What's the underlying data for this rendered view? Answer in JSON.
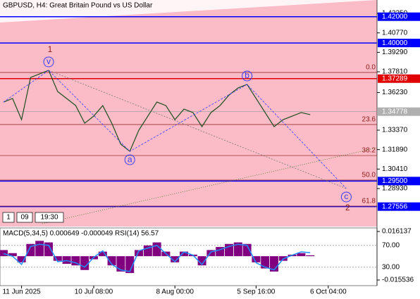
{
  "chart_data": {
    "type": "line",
    "title": "GBPUSD, H4:  Great Britain Pound vs US Dollar",
    "period_box": [
      "1",
      "09",
      "19:30"
    ],
    "categories": [
      null,
      null,
      "11 Jun 2025",
      null,
      null,
      null,
      null,
      null,
      null,
      null,
      "10 Jul 08:00",
      null,
      null,
      null,
      null,
      null,
      null,
      null,
      null,
      "8 Aug 00:00",
      null,
      null,
      null,
      null,
      null,
      null,
      null,
      null,
      "5 Sep 16:00",
      null,
      null,
      null,
      null,
      null,
      null,
      null,
      "6 Oct 04:00",
      null,
      null,
      null
    ],
    "series": [
      {
        "name": "GBPUSD",
        "color": "#1f4d1f",
        "values": [
          1.3551,
          1.3578,
          1.3417,
          1.3738,
          1.3765,
          1.3792,
          1.3631,
          1.3578,
          1.3524,
          1.339,
          1.3444,
          1.3524,
          1.339,
          1.323,
          1.3176,
          1.3337,
          1.3444,
          1.3551,
          1.3524,
          1.3417,
          1.3497,
          1.3471,
          1.3364,
          1.3471,
          1.3524,
          1.3604,
          1.3658,
          1.3685,
          1.3578,
          1.3471,
          1.3364,
          1.3417,
          1.3444,
          1.3471,
          1.3455,
          null,
          null,
          null,
          null,
          null
        ]
      }
    ],
    "ylim": [
      1.2604,
      1.4327
    ],
    "yticks": [
      {
        "value": 1.4225,
        "label": "1.42250"
      },
      {
        "value": 1.4077,
        "label": "1.40770"
      },
      {
        "value": 1.3929,
        "label": "1.39290"
      },
      {
        "value": 1.3781,
        "label": "1.37810"
      },
      {
        "value": 1.3623,
        "label": "1.36230"
      },
      {
        "value": 1.3337,
        "label": "1.33370"
      },
      {
        "value": 1.3189,
        "label": "1.31890"
      },
      {
        "value": 1.3041,
        "label": "1.30410"
      },
      {
        "value": 1.2893,
        "label": "1.28930"
      }
    ],
    "levels": [
      {
        "value": 1.42,
        "label": "1.42000",
        "color": "#0000ff"
      },
      {
        "value": 1.4,
        "label": "1.40000",
        "color": "#0000ff"
      },
      {
        "value": 1.37289,
        "label": "1.37289",
        "color": "#e00000"
      },
      {
        "value": 1.295,
        "label": "1.29500",
        "color": "#0000ff"
      },
      {
        "value": 1.27556,
        "label": "1.27556",
        "color": "#0000ff"
      }
    ],
    "current_price": {
      "value": 1.34778,
      "label": "1.34778"
    },
    "fib_levels": [
      {
        "value": 1.3776,
        "label": "0.0"
      },
      {
        "value": 1.338,
        "label": "23.6"
      },
      {
        "value": 1.3144,
        "label": "38.2"
      },
      {
        "value": 1.2957,
        "label": "50.0"
      },
      {
        "value": 1.2759,
        "label": "61.8"
      }
    ],
    "waves": [
      {
        "label": "v",
        "index": 5,
        "price": 1.3792,
        "outer": "1"
      },
      {
        "label": "a",
        "index": 14,
        "price": 1.3176
      },
      {
        "label": "b",
        "index": 27,
        "price": 1.3685
      },
      {
        "label": "c",
        "index": 38,
        "price": 1.2893,
        "outer": "2"
      }
    ],
    "indicator_title": "MACD(5,34,5) 0.000649 -0.000049 RSI(14) 56.57",
    "macd": {
      "color": "#800080",
      "values": [
        0.004,
        0.002,
        -0.004,
        0.008,
        0.01,
        0.009,
        -0.003,
        -0.005,
        -0.006,
        -0.009,
        -0.002,
        0.003,
        -0.006,
        -0.01,
        -0.011,
        0.004,
        0.007,
        0.009,
        0.003,
        -0.004,
        0.003,
        0.001,
        -0.006,
        0.004,
        0.006,
        0.008,
        0.009,
        0.008,
        -0.004,
        -0.008,
        -0.01,
        -0.003,
        0.001,
        0.002,
        0.0006,
        null,
        null,
        null,
        null,
        null
      ],
      "ylim": [
        -0.015536,
        0.016137
      ],
      "yticks": [
        {
          "value": 0.016137,
          "label": "0.016137"
        },
        {
          "value": -0.015536,
          "label": "-0.015536"
        }
      ]
    },
    "rsi": {
      "color": "#1e90ff",
      "values": [
        55,
        50,
        35,
        68,
        72,
        70,
        40,
        42,
        38,
        30,
        48,
        60,
        35,
        25,
        22,
        60,
        65,
        70,
        55,
        40,
        58,
        52,
        35,
        58,
        62,
        68,
        72,
        70,
        38,
        30,
        25,
        45,
        52,
        58,
        56.57,
        null,
        null,
        null,
        null,
        null
      ],
      "ylim": [
        0,
        100
      ],
      "yticks": [
        {
          "value": 70,
          "label": "70.00"
        },
        {
          "value": 30,
          "label": "30.00"
        }
      ]
    }
  }
}
